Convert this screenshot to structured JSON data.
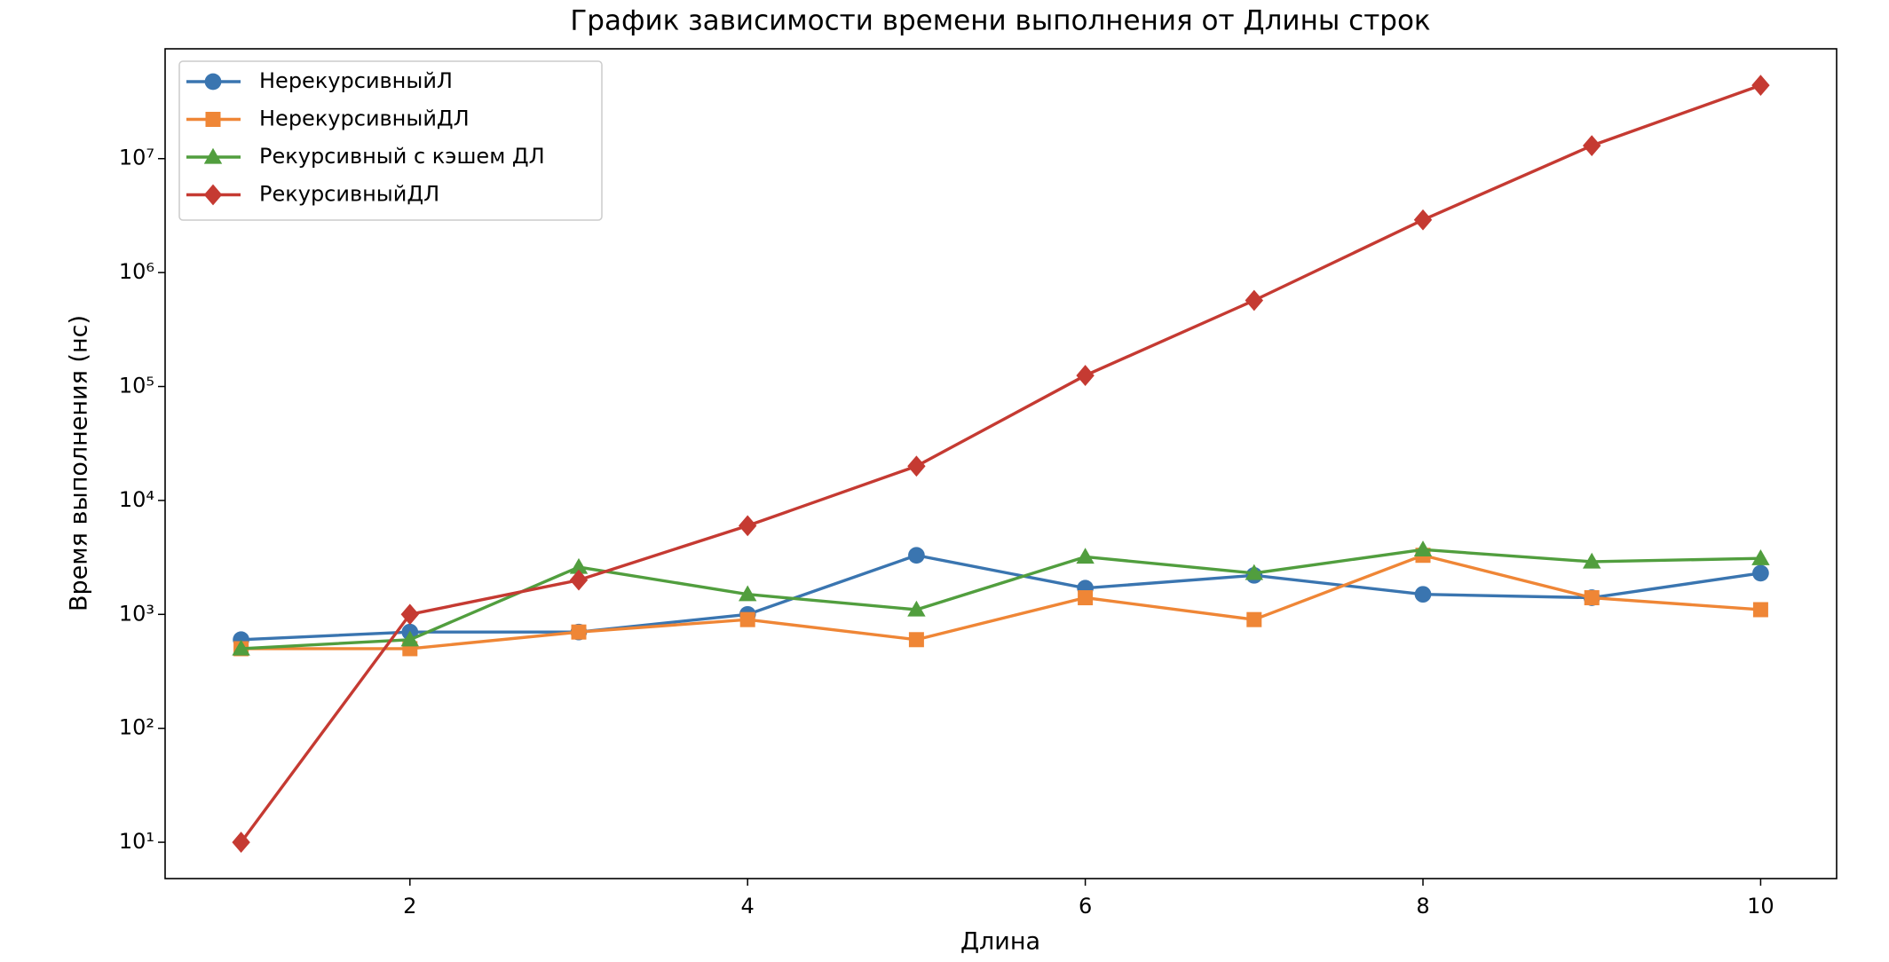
{
  "chart_data": {
    "type": "line",
    "title": "График зависимости времени выполнения от Длины строк",
    "x_label": "Длина",
    "y_label": "Время выполнения (нс)",
    "x": [
      1,
      2,
      3,
      4,
      5,
      6,
      7,
      8,
      9,
      10
    ],
    "series": [
      {
        "name": "НерекурсивныйЛ",
        "color": "#3a75b0",
        "marker": "circle",
        "values": [
          600,
          700,
          700,
          1000,
          3300,
          1700,
          2200,
          1500,
          1400,
          2300
        ]
      },
      {
        "name": "НерекурсивныйДЛ",
        "color": "#ef8636",
        "marker": "square",
        "values": [
          500,
          500,
          700,
          900,
          600,
          1400,
          900,
          3300,
          1400,
          1100
        ]
      },
      {
        "name": "Рекурсивный с кэшем ДЛ",
        "color": "#519e3e",
        "marker": "triangle",
        "values": [
          500,
          600,
          2600,
          1500,
          1100,
          3200,
          2300,
          3700,
          2900,
          3100
        ]
      },
      {
        "name": "РекурсивныйДЛ",
        "color": "#c53a32",
        "marker": "diamond",
        "values": [
          10,
          1000,
          2000,
          6000,
          20000,
          125000,
          570000,
          2900000,
          13000000,
          44000000
        ]
      }
    ],
    "xlim": [
      0.55,
      10.45
    ],
    "xticks": [
      2,
      4,
      6,
      8,
      10
    ],
    "ylim": [
      4.8,
      92000000
    ],
    "y_scale": "log",
    "yticks": [
      {
        "value": 10,
        "label": "10¹"
      },
      {
        "value": 100,
        "label": "10²"
      },
      {
        "value": 1000,
        "label": "10³"
      },
      {
        "value": 10000,
        "label": "10⁴"
      },
      {
        "value": 100000,
        "label": "10⁵"
      },
      {
        "value": 1000000,
        "label": "10⁶"
      },
      {
        "value": 10000000,
        "label": "10⁷"
      }
    ],
    "legend": "upper left"
  }
}
